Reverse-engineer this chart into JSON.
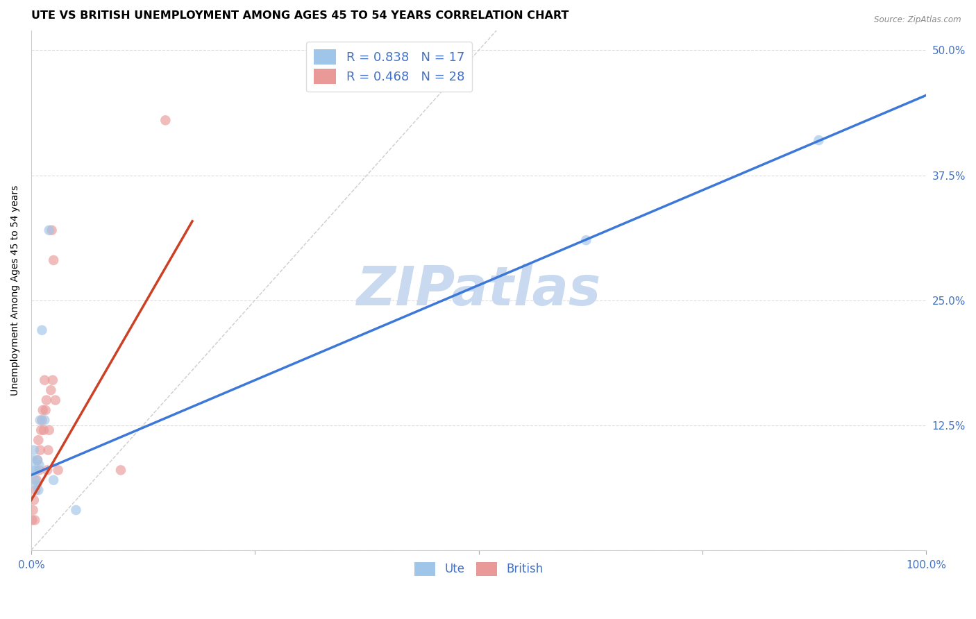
{
  "title": "UTE VS BRITISH UNEMPLOYMENT AMONG AGES 45 TO 54 YEARS CORRELATION CHART",
  "source": "Source: ZipAtlas.com",
  "tick_color": "#4472c4",
  "ylabel": "Unemployment Among Ages 45 to 54 years",
  "xlim": [
    0.0,
    1.0
  ],
  "ylim": [
    0.0,
    0.52
  ],
  "xticks": [
    0.0,
    0.25,
    0.5,
    0.75,
    1.0
  ],
  "xtick_labels": [
    "0.0%",
    "",
    "",
    "",
    "100.0%"
  ],
  "yticks": [
    0.0,
    0.125,
    0.25,
    0.375,
    0.5
  ],
  "ytick_labels": [
    "",
    "12.5%",
    "25.0%",
    "37.5%",
    "50.0%"
  ],
  "ute_color": "#9fc5e8",
  "british_color": "#ea9999",
  "ute_R": 0.838,
  "ute_N": 17,
  "british_R": 0.468,
  "british_N": 28,
  "ute_line_color": "#3c78d8",
  "british_line_color": "#cc4125",
  "ref_line_color": "#cccccc",
  "watermark": "ZIPatlas",
  "watermark_color": "#c9d9f0",
  "legend_color": "#4472c4",
  "ute_scatter_x": [
    0.001,
    0.002,
    0.003,
    0.004,
    0.005,
    0.006,
    0.007,
    0.008,
    0.009,
    0.01,
    0.012,
    0.015,
    0.02,
    0.025,
    0.05,
    0.62,
    0.88
  ],
  "ute_scatter_y": [
    0.08,
    0.09,
    0.1,
    0.07,
    0.08,
    0.065,
    0.09,
    0.06,
    0.085,
    0.13,
    0.22,
    0.13,
    0.32,
    0.07,
    0.04,
    0.31,
    0.41
  ],
  "british_scatter_x": [
    0.001,
    0.002,
    0.003,
    0.004,
    0.005,
    0.006,
    0.007,
    0.008,
    0.009,
    0.01,
    0.011,
    0.012,
    0.013,
    0.014,
    0.015,
    0.016,
    0.017,
    0.018,
    0.019,
    0.02,
    0.022,
    0.023,
    0.024,
    0.025,
    0.027,
    0.03,
    0.1,
    0.15
  ],
  "british_scatter_y": [
    0.03,
    0.04,
    0.05,
    0.03,
    0.06,
    0.07,
    0.09,
    0.11,
    0.08,
    0.1,
    0.12,
    0.13,
    0.14,
    0.12,
    0.17,
    0.14,
    0.15,
    0.08,
    0.1,
    0.12,
    0.16,
    0.32,
    0.17,
    0.29,
    0.15,
    0.08,
    0.08,
    0.43
  ],
  "ute_line_x0": 0.0,
  "ute_line_x1": 1.0,
  "ute_line_intercept": 0.075,
  "ute_line_slope": 0.38,
  "british_line_x0": 0.0,
  "british_line_x1": 0.18,
  "british_line_intercept": 0.05,
  "british_line_slope": 1.55,
  "background_color": "#ffffff",
  "grid_color": "#dddddd",
  "title_fontsize": 11.5,
  "axis_label_fontsize": 10,
  "tick_fontsize": 11,
  "legend_fontsize": 13,
  "marker_size": 110,
  "marker_alpha": 0.65
}
